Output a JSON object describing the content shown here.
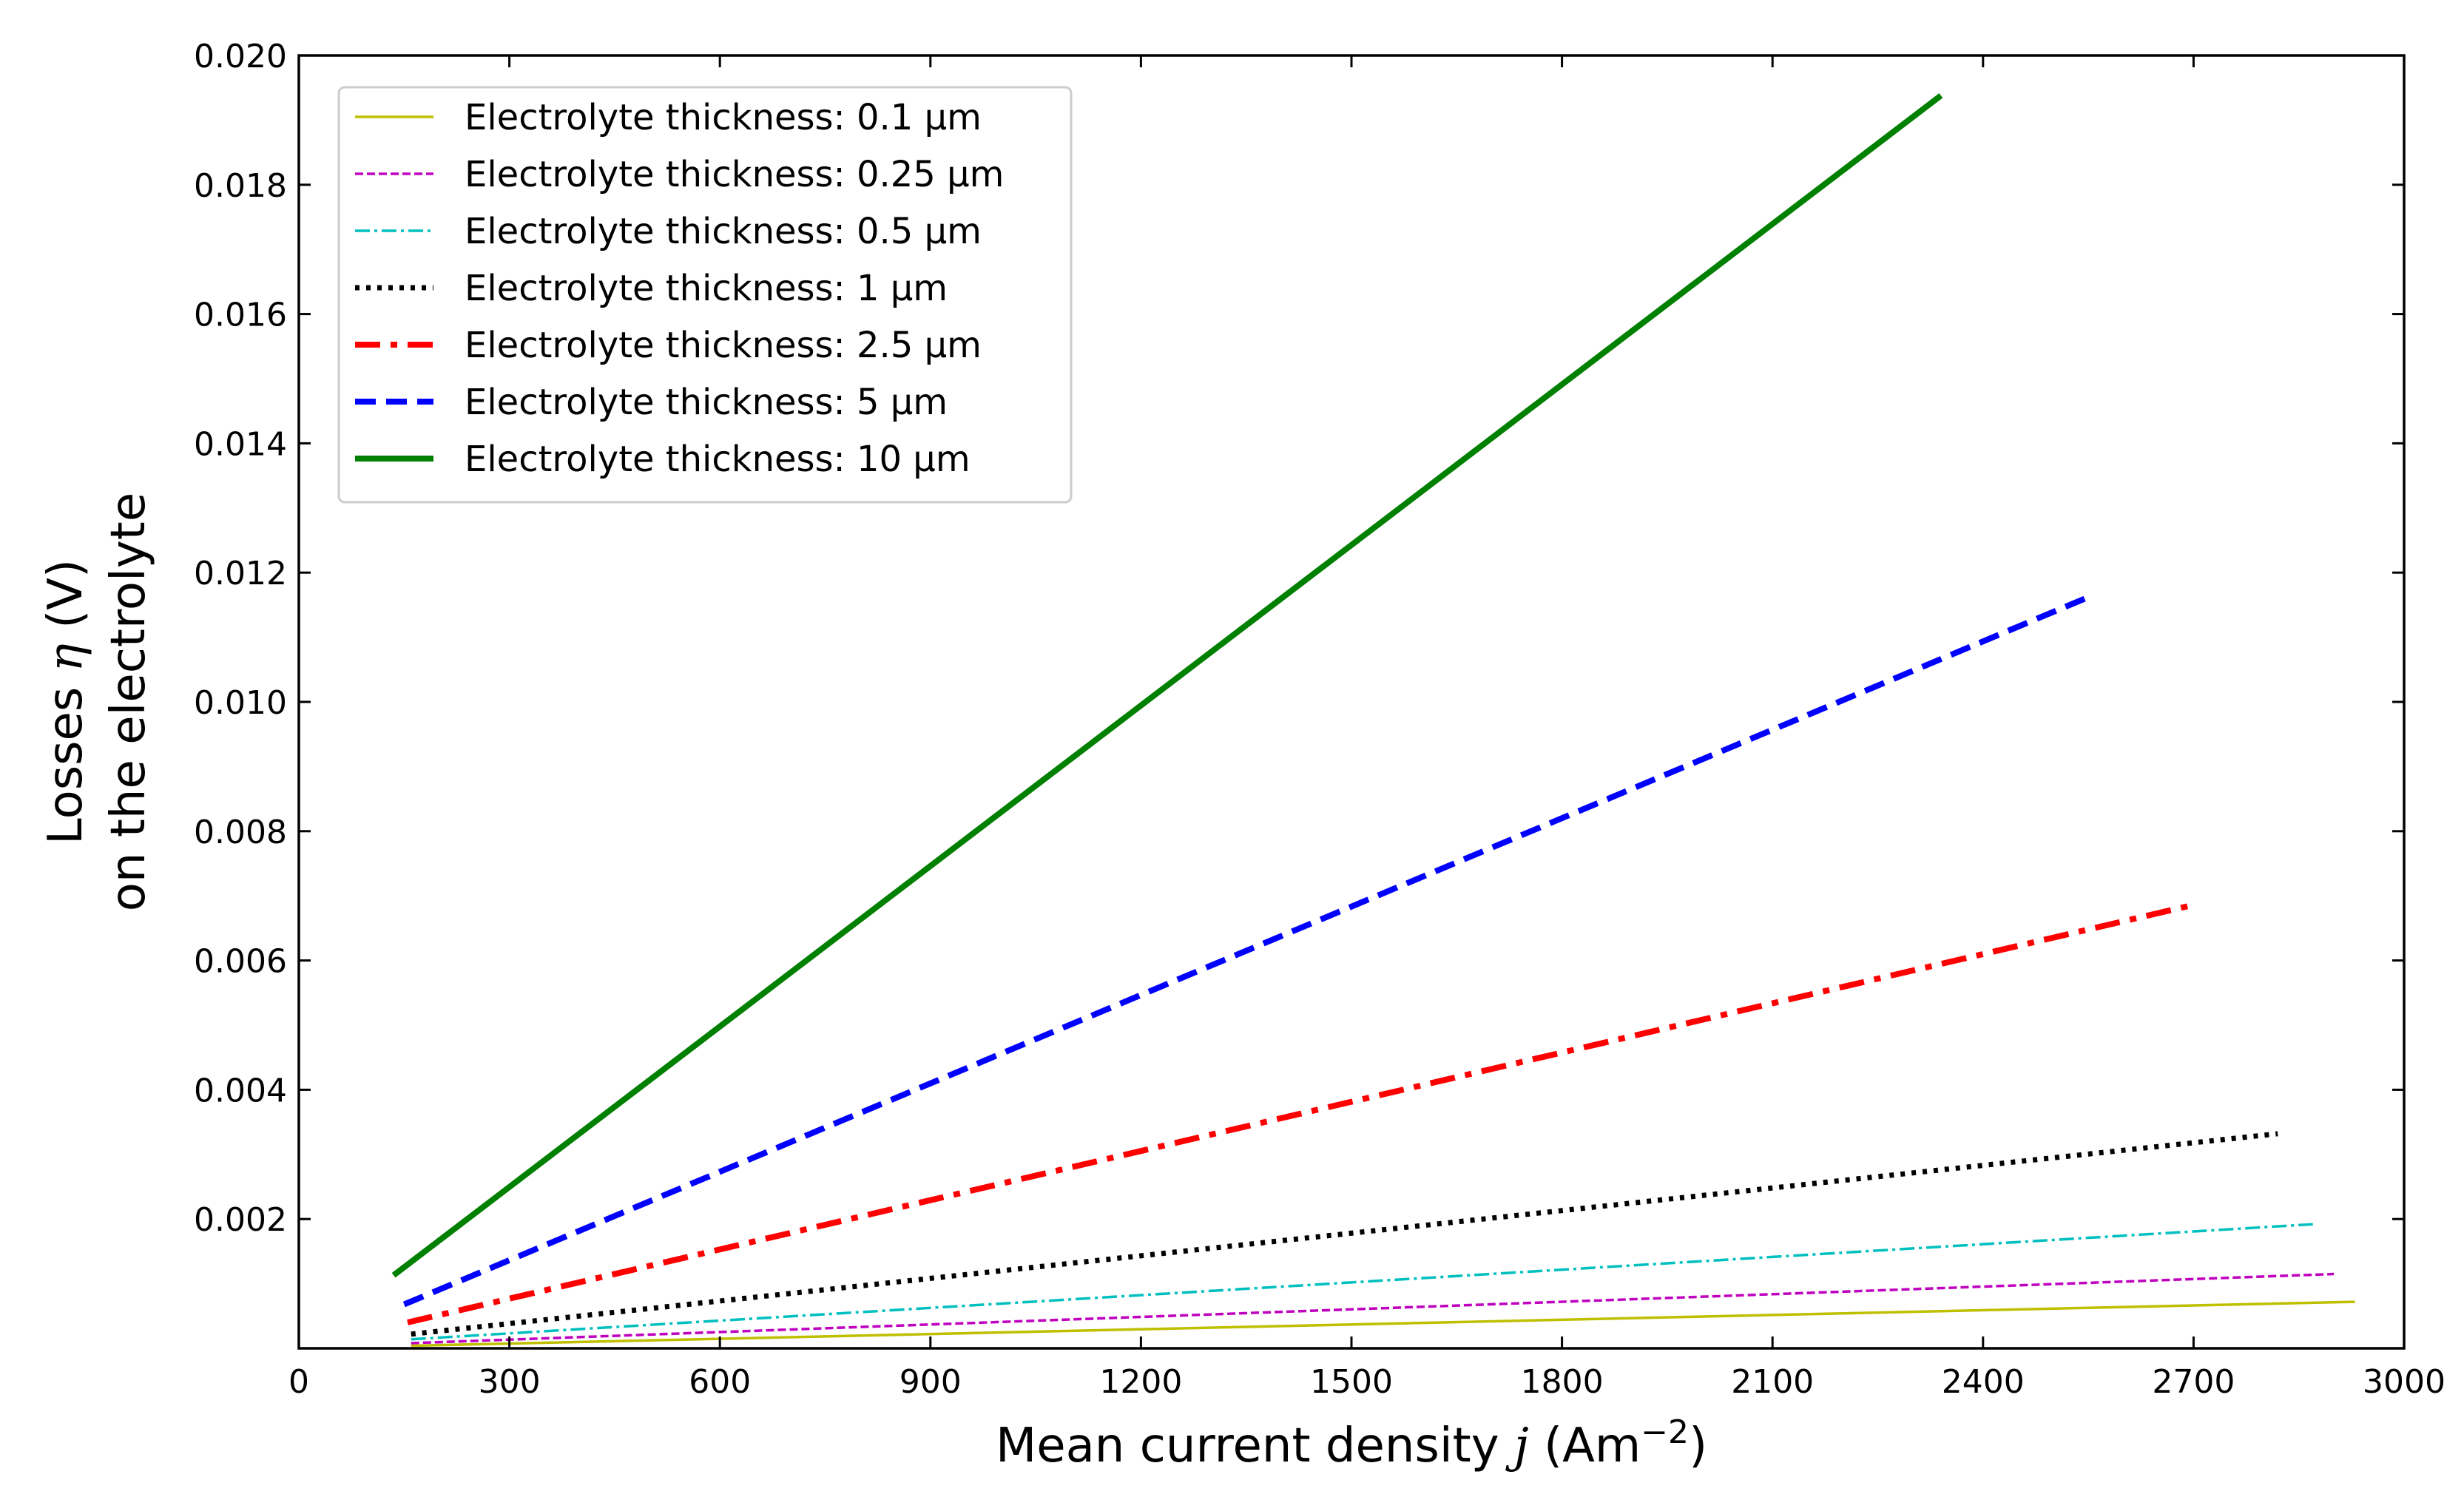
{
  "chart_data": {
    "type": "line",
    "title": "",
    "xlabel": "Mean current density j (Am⁻²)",
    "xlabel_parts": {
      "main": "Mean current density ",
      "var": "j",
      "unit_open": " (Am",
      "unit_sup": "−2",
      "unit_close": ")"
    },
    "ylabel_lines": [
      "Losses η (V)",
      "on the electrolyte"
    ],
    "ylabel_parts": {
      "line1_pre": "Losses ",
      "line1_var": "η",
      "line1_post": " (V)",
      "line2": "on the electrolyte"
    },
    "xlim": [
      0,
      3000
    ],
    "ylim": [
      0,
      0.02
    ],
    "x_ticks": [
      0,
      300,
      600,
      900,
      1200,
      1500,
      1800,
      2100,
      2400,
      2700,
      3000
    ],
    "x_tick_labels": [
      "0",
      "300",
      "600",
      "900",
      "1200",
      "1500",
      "1800",
      "2100",
      "2400",
      "2700",
      "3000"
    ],
    "y_ticks": [
      0.002,
      0.004,
      0.006,
      0.008,
      0.01,
      0.012,
      0.014,
      0.016,
      0.018,
      0.02
    ],
    "y_tick_labels": [
      "0.002",
      "0.004",
      "0.006",
      "0.008",
      "0.010",
      "0.012",
      "0.014",
      "0.016",
      "0.018",
      "0.020"
    ],
    "grid": false,
    "legend_position": "top-left",
    "series": [
      {
        "name": "Electrolyte thickness: 0.1 μm",
        "color": "#bfbf00",
        "style": "solid-thin",
        "x": [
          160,
          2930
        ],
        "y": [
          4e-05,
          0.00072
        ]
      },
      {
        "name": "Electrolyte thickness: 0.25 μm",
        "color": "#bf00bf",
        "style": "dashed-thin",
        "x": [
          160,
          2900
        ],
        "y": [
          8e-05,
          0.00115
        ]
      },
      {
        "name": "Electrolyte thickness: 0.5 μm",
        "color": "#00bfbf",
        "style": "dashdot-thin",
        "x": [
          160,
          2870
        ],
        "y": [
          0.00014,
          0.00192
        ]
      },
      {
        "name": "Electrolyte thickness: 1 μm",
        "color": "#000000",
        "style": "dotted",
        "x": [
          160,
          2820
        ],
        "y": [
          0.00022,
          0.00332
        ]
      },
      {
        "name": "Electrolyte thickness: 2.5 μm",
        "color": "#ff0000",
        "style": "dashdot-thick",
        "x": [
          155,
          2700
        ],
        "y": [
          0.0004,
          0.00686
        ]
      },
      {
        "name": "Electrolyte thickness: 5 μm",
        "color": "#0000ff",
        "style": "dashed-thick",
        "x": [
          150,
          2550
        ],
        "y": [
          0.00068,
          0.01162
        ]
      },
      {
        "name": "Electrolyte thickness: 10 μm",
        "color": "#008000",
        "style": "solid-thick",
        "x": [
          135,
          2340
        ],
        "y": [
          0.00113,
          0.01938
        ]
      }
    ]
  }
}
